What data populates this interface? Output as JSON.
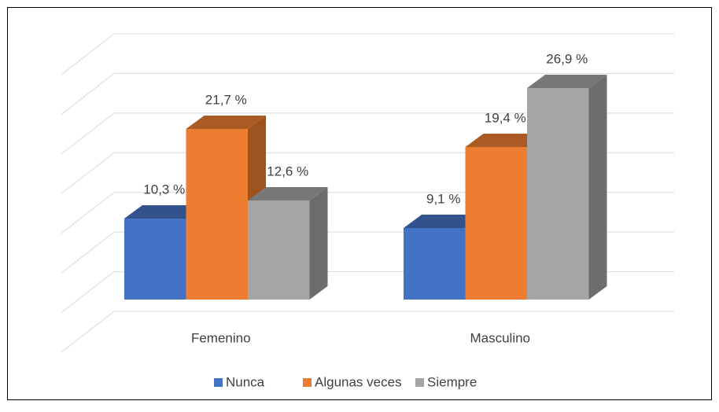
{
  "chart_data": {
    "type": "bar3d",
    "categories": [
      "Femenino",
      "Masculino"
    ],
    "series": [
      {
        "name": "Nunca",
        "color": "#4472c4",
        "values": [
          10.3,
          9.1
        ],
        "value_labels": [
          "10,3 %",
          "9,1 %"
        ]
      },
      {
        "name": "Algunas veces",
        "color": "#ed7d31",
        "values": [
          21.7,
          19.4
        ],
        "value_labels": [
          "21,7 %",
          "19,4 %"
        ]
      },
      {
        "name": "Siempre",
        "color": "#a5a5a5",
        "values": [
          12.6,
          26.9
        ],
        "value_labels": [
          "12,6 %",
          "26,9 %"
        ]
      }
    ],
    "ylim": [
      0,
      35
    ],
    "yticks": [
      0,
      5,
      10,
      15,
      20,
      25,
      30,
      35
    ],
    "grid": true,
    "legend": "bottom"
  }
}
